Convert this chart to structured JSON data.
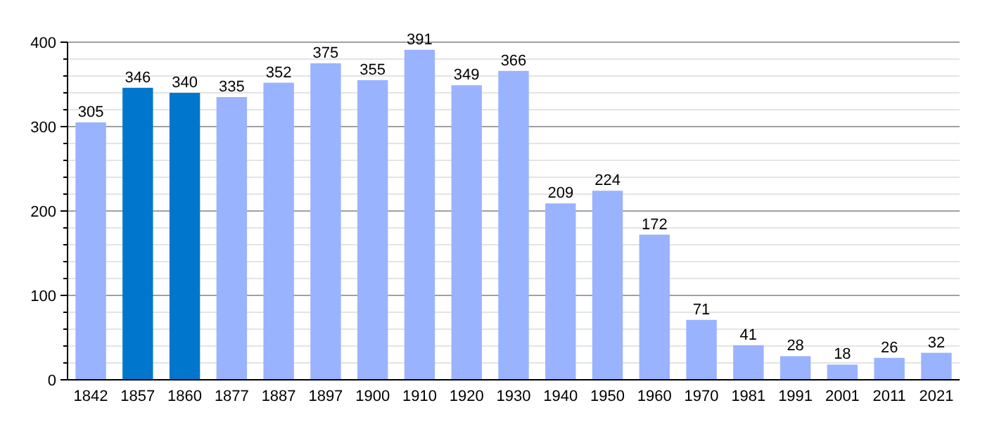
{
  "chart_data": {
    "type": "bar",
    "categories": [
      "1842",
      "1857",
      "1860",
      "1877",
      "1887",
      "1897",
      "1900",
      "1910",
      "1920",
      "1930",
      "1940",
      "1950",
      "1960",
      "1970",
      "1981",
      "1991",
      "2001",
      "2011",
      "2021"
    ],
    "values": [
      305,
      346,
      340,
      335,
      352,
      375,
      355,
      391,
      349,
      366,
      209,
      224,
      172,
      71,
      41,
      28,
      18,
      26,
      32
    ],
    "colors": [
      "#99b3ff",
      "#0077cc",
      "#0077cc",
      "#99b3ff",
      "#99b3ff",
      "#99b3ff",
      "#99b3ff",
      "#99b3ff",
      "#99b3ff",
      "#99b3ff",
      "#99b3ff",
      "#99b3ff",
      "#99b3ff",
      "#99b3ff",
      "#99b3ff",
      "#99b3ff",
      "#99b3ff",
      "#99b3ff",
      "#99b3ff"
    ],
    "ylim": [
      0,
      400
    ],
    "yticks": [
      0,
      {
        "value": 20,
        "label": null
      },
      {
        "value": 40,
        "label": null
      },
      {
        "value": 60,
        "label": null
      },
      {
        "value": 80,
        "label": null
      },
      100,
      {
        "value": 120,
        "label": null
      },
      {
        "value": 140,
        "label": null
      },
      {
        "value": 160,
        "label": null
      },
      {
        "value": 180,
        "label": null
      },
      200,
      {
        "value": 220,
        "label": null
      },
      {
        "value": 240,
        "label": null
      },
      {
        "value": 260,
        "label": null
      },
      {
        "value": 280,
        "label": null
      },
      300,
      {
        "value": 320,
        "label": null
      },
      {
        "value": 340,
        "label": null
      },
      {
        "value": 360,
        "label": null
      },
      {
        "value": 380,
        "label": null
      },
      400
    ],
    "grid": "y",
    "data_labels": true
  }
}
